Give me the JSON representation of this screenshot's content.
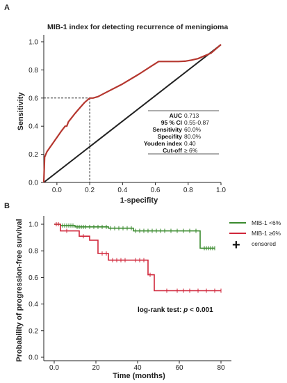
{
  "panels": {
    "a": {
      "letter": "A"
    },
    "b": {
      "letter": "B"
    }
  },
  "chart_data": [
    {
      "type": "line",
      "title": "MIB-1 index for detecting recurrence of meningioma",
      "xlabel": "1-specifity",
      "ylabel": "Sensitivity",
      "xlim": [
        -0.08,
        1.0
      ],
      "ylim": [
        0.0,
        1.0
      ],
      "xticks": [
        0.0,
        0.2,
        0.4,
        0.6,
        0.8,
        1.0
      ],
      "xtick_labels": [
        "0.0",
        "0.2",
        "0.4",
        "0.6",
        "0.8",
        "1.0"
      ],
      "yticks": [
        0.0,
        0.2,
        0.4,
        0.6,
        0.8,
        1.0
      ],
      "ytick_labels": [
        "0.0",
        "0.2",
        "0.4",
        "0.6",
        "0.8",
        "1.0"
      ],
      "colors": {
        "roc": "#b5372f",
        "reference": "#222222"
      },
      "series": [
        {
          "role": "roc",
          "x": [
            -0.08,
            -0.075,
            -0.06,
            -0.03,
            0.0,
            0.03,
            0.05,
            0.06,
            0.07,
            0.09,
            0.11,
            0.14,
            0.17,
            0.19,
            0.2,
            0.22,
            0.25,
            0.3,
            0.4,
            0.5,
            0.58,
            0.62,
            0.66,
            0.7,
            0.74,
            0.78,
            0.82,
            0.86,
            0.9,
            0.94,
            0.97,
            1.0
          ],
          "y": [
            0.0,
            0.18,
            0.22,
            0.27,
            0.32,
            0.37,
            0.4,
            0.4,
            0.43,
            0.46,
            0.49,
            0.53,
            0.57,
            0.59,
            0.6,
            0.6,
            0.61,
            0.64,
            0.7,
            0.77,
            0.83,
            0.86,
            0.86,
            0.86,
            0.86,
            0.862,
            0.87,
            0.88,
            0.9,
            0.92,
            0.95,
            0.98
          ]
        },
        {
          "role": "reference",
          "x": [
            -0.08,
            1.0
          ],
          "y": [
            0.0,
            0.98
          ]
        }
      ],
      "reference_point": {
        "x": 0.2,
        "y": 0.6
      },
      "stats": [
        {
          "label": "AUC",
          "value": "0.713"
        },
        {
          "label": "95 % CI",
          "value": "0.55-0.87"
        },
        {
          "label": "Sensitivity",
          "value": "60.0%"
        },
        {
          "label": "Specifity",
          "value": "80.0%"
        },
        {
          "label": "Youden index",
          "value": "0.40"
        },
        {
          "label": "Cut-off",
          "value": "≥ 6%"
        }
      ]
    },
    {
      "type": "line",
      "title": "",
      "xlabel": "Time (months)",
      "ylabel": "Probability of progression-free survival",
      "xlim": [
        -5,
        85
      ],
      "ylim": [
        0.0,
        1.05
      ],
      "xticks": [
        0,
        20,
        40,
        60,
        80
      ],
      "xtick_labels": [
        "0.0",
        "20",
        "40",
        "60",
        "80"
      ],
      "yticks": [
        0.0,
        0.2,
        0.4,
        0.6,
        0.8,
        1.0
      ],
      "ytick_labels": [
        "0.0",
        "0.2",
        "0.4",
        "0.6",
        "0.8",
        "1.0"
      ],
      "annotation": {
        "prefix": "log-rank test: ",
        "p_symbol": "p",
        "suffix": " < 0.001"
      },
      "legend": {
        "position": "top-right",
        "censored_symbol": "+",
        "censored_label": "censored"
      },
      "series": [
        {
          "name": "MIB-1 <6%",
          "color": "#3a8a2e",
          "steps": [
            [
              0,
              1.0
            ],
            [
              3,
              0.99
            ],
            [
              10,
              0.98
            ],
            [
              26,
              0.97
            ],
            [
              38,
              0.95
            ],
            [
              70,
              0.82
            ],
            [
              77,
              0.82
            ]
          ],
          "censored": [
            1,
            2,
            4,
            5,
            6,
            7,
            8,
            9,
            11,
            12,
            13,
            14,
            15,
            17,
            19,
            21,
            23,
            25,
            27,
            29,
            31,
            33,
            35,
            37,
            39,
            41,
            43,
            45,
            47,
            49,
            51,
            53,
            56,
            59,
            62,
            65,
            68,
            72,
            73,
            74,
            75,
            76,
            77
          ]
        },
        {
          "name": "MIB-1 ≥6%",
          "color": "#d0263a",
          "steps": [
            [
              0,
              1.0
            ],
            [
              3,
              0.95
            ],
            [
              12,
              0.91
            ],
            [
              17,
              0.88
            ],
            [
              21,
              0.78
            ],
            [
              26,
              0.73
            ],
            [
              45,
              0.62
            ],
            [
              48,
              0.5
            ],
            [
              80,
              0.5
            ]
          ],
          "censored": [
            1,
            2,
            6,
            14,
            23,
            25,
            28,
            30,
            32,
            34,
            39,
            41,
            43,
            46,
            54,
            59,
            62,
            65,
            69,
            73,
            77,
            80
          ]
        }
      ]
    }
  ]
}
